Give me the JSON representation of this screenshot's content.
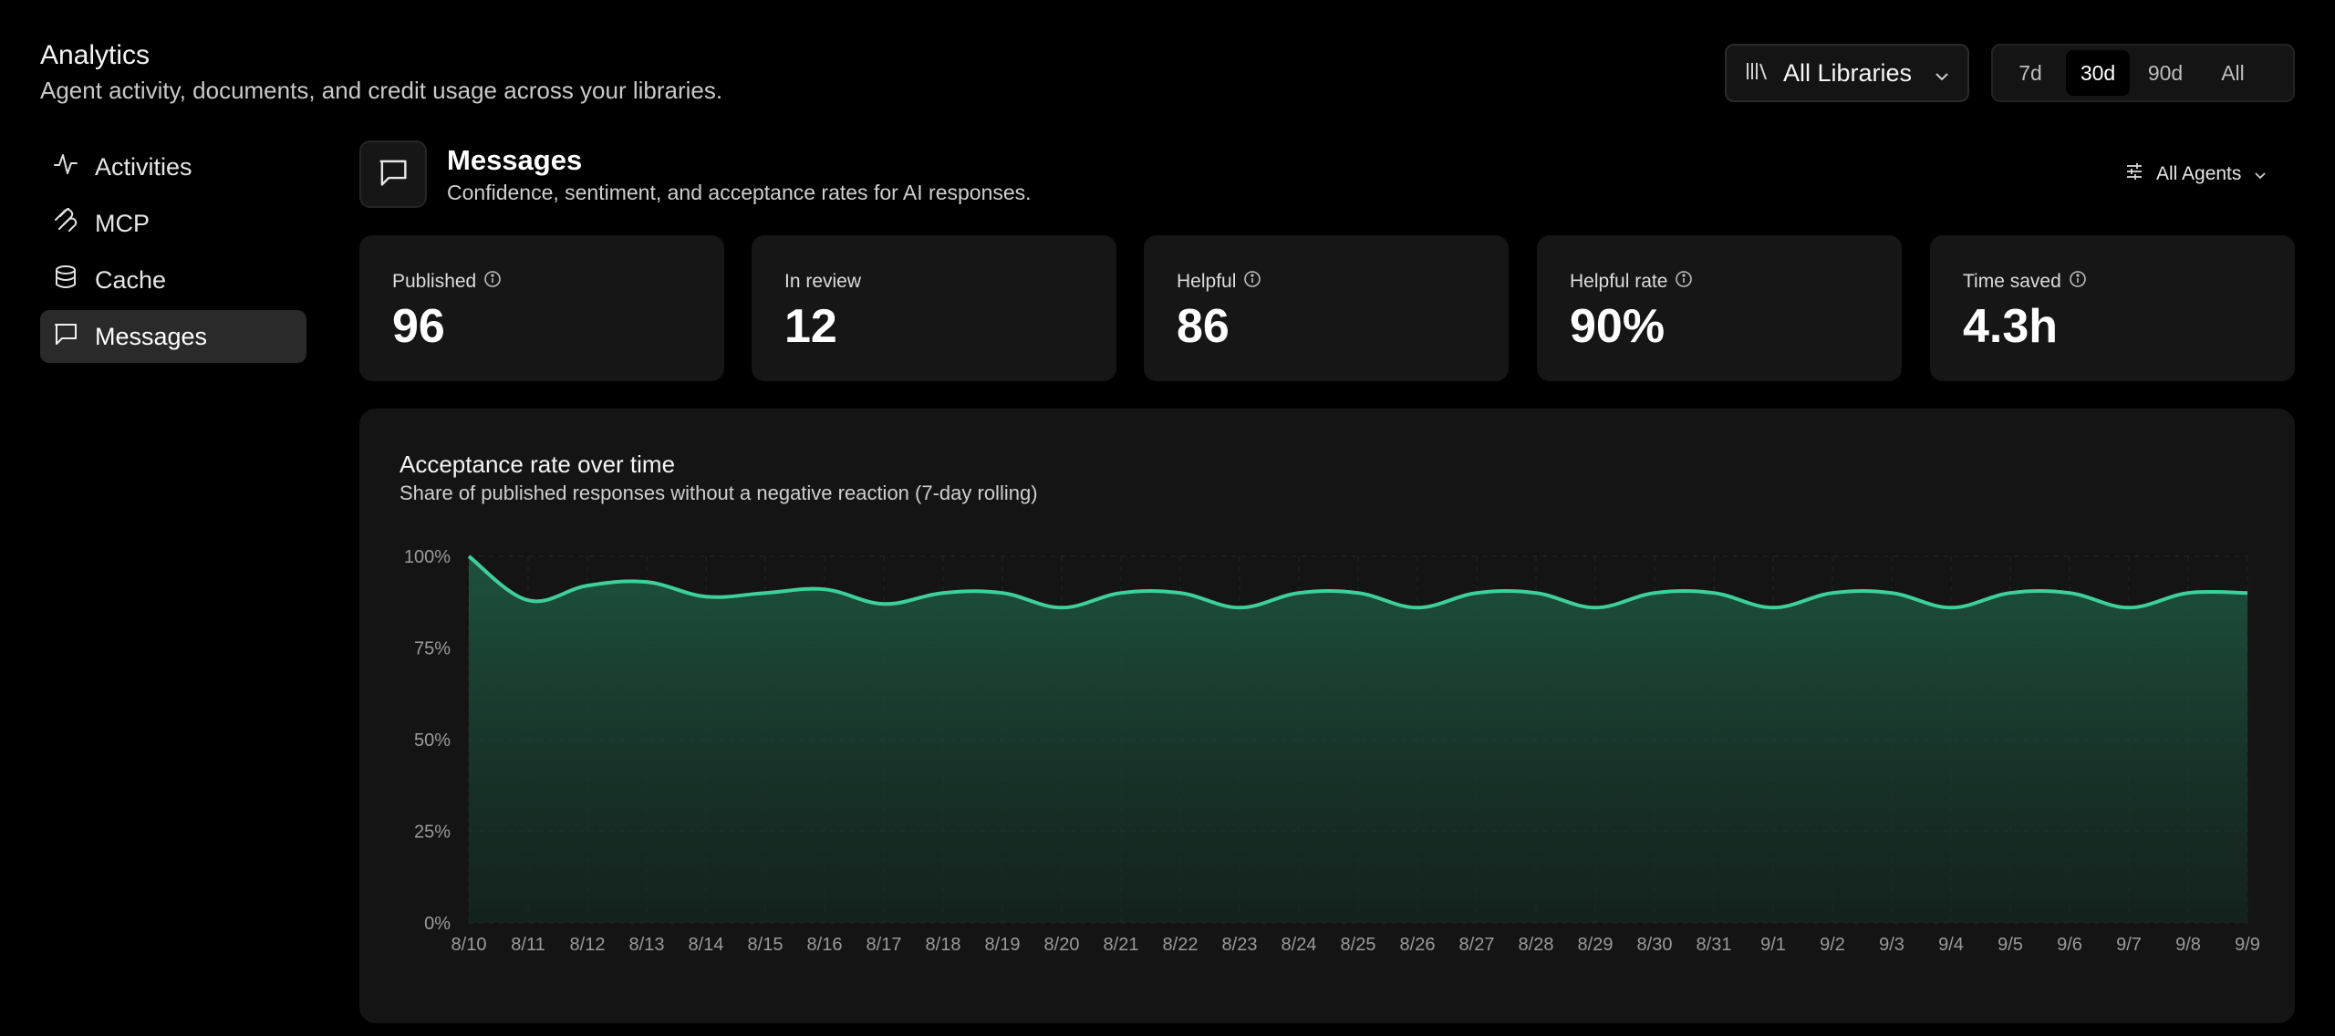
{
  "page": {
    "title": "Analytics",
    "subtitle": "Agent activity, documents, and credit usage across your libraries."
  },
  "library_select": {
    "label": "All Libraries",
    "icon": "library-icon"
  },
  "range": {
    "options": [
      "7d",
      "30d",
      "90d",
      "All"
    ],
    "selected": "30d"
  },
  "sidebar": {
    "items": [
      {
        "label": "Activities",
        "icon": "activity-icon"
      },
      {
        "label": "MCP",
        "icon": "mcp-icon"
      },
      {
        "label": "Cache",
        "icon": "database-icon"
      },
      {
        "label": "Messages",
        "icon": "message-icon",
        "active": true
      }
    ]
  },
  "section": {
    "title": "Messages",
    "subtitle": "Confidence, sentiment, and acceptance rates for AI responses.",
    "filter_label": "All Agents"
  },
  "stats": [
    {
      "label": "Published",
      "value": "96",
      "info": true
    },
    {
      "label": "In review",
      "value": "12",
      "info": false
    },
    {
      "label": "Helpful",
      "value": "86",
      "info": true
    },
    {
      "label": "Helpful rate",
      "value": "90%",
      "info": true
    },
    {
      "label": "Time saved",
      "value": "4.3h",
      "info": true
    }
  ],
  "chart": {
    "title": "Acceptance rate over time",
    "subtitle": "Share of published responses without a negative reaction (7-day rolling)"
  },
  "colors": {
    "accent": "#3ecf9a",
    "background": "#000000",
    "card": "#161616"
  },
  "chart_data": {
    "type": "area",
    "title": "Acceptance rate over time",
    "subtitle": "Share of published responses without a negative reaction (7-day rolling)",
    "x": [
      "8/10",
      "8/11",
      "8/12",
      "8/13",
      "8/14",
      "8/15",
      "8/16",
      "8/17",
      "8/18",
      "8/19",
      "8/20",
      "8/21",
      "8/22",
      "8/23",
      "8/24",
      "8/25",
      "8/26",
      "8/27",
      "8/28",
      "8/29",
      "8/30",
      "8/31",
      "9/1",
      "9/2",
      "9/3",
      "9/4",
      "9/5",
      "9/6",
      "9/7",
      "9/8",
      "9/9"
    ],
    "series": [
      {
        "values": [
          100,
          88,
          92,
          93,
          89,
          90,
          91,
          87,
          90,
          90,
          86,
          90,
          90,
          86,
          90,
          90,
          86,
          90,
          90,
          86,
          90,
          90,
          86,
          90,
          90,
          86,
          90,
          90,
          86,
          90,
          90
        ]
      }
    ],
    "yticks": [
      "0%",
      "25%",
      "50%",
      "75%",
      "100%"
    ],
    "ylim": [
      0,
      100
    ],
    "grid": true,
    "legend": "none"
  }
}
